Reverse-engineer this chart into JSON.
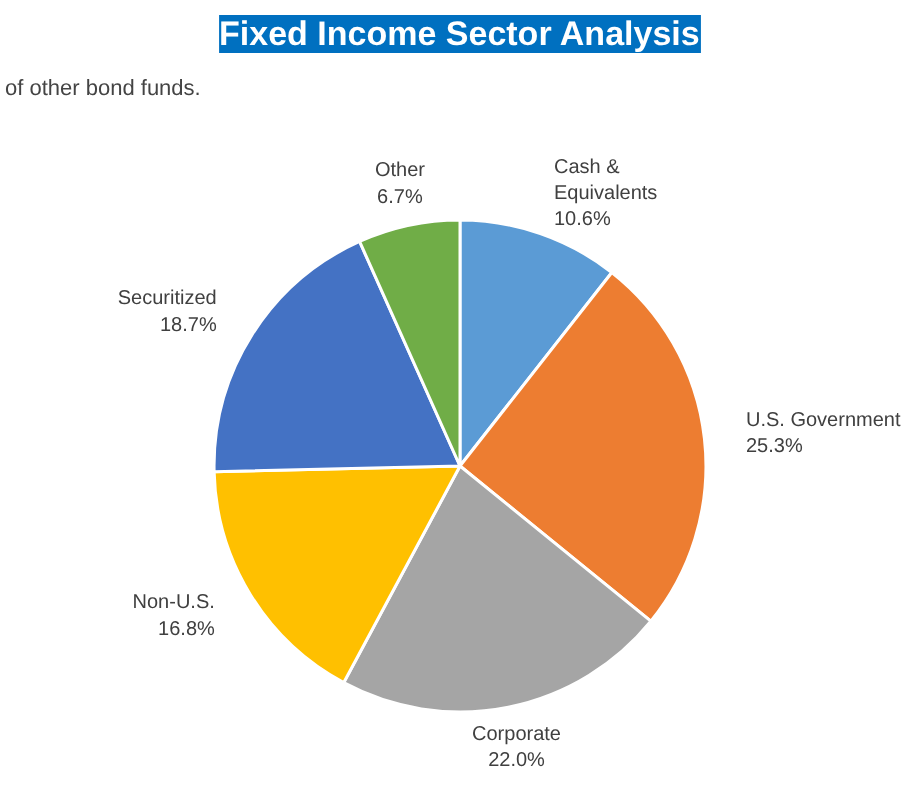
{
  "chart_data": {
    "type": "pie",
    "title": "Fixed Income Sector Analysis",
    "annotations": [
      "of other bond funds."
    ],
    "categories": [
      "Cash &\nEquivalents",
      "U.S. Government",
      "Corporate",
      "Non-U.S.",
      "Securitized",
      "Other"
    ],
    "values": [
      10.6,
      25.3,
      22.0,
      16.8,
      18.7,
      6.7
    ],
    "value_labels": [
      "10.6%",
      "25.3%",
      "22.0%",
      "16.8%",
      "18.7%",
      "6.7%"
    ],
    "colors": [
      "#5b9bd5",
      "#ed7d31",
      "#a5a5a5",
      "#ffc000",
      "#4472c4",
      "#70ad47"
    ]
  }
}
